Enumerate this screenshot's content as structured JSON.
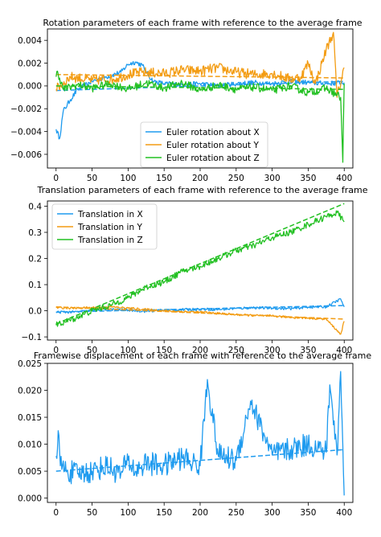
{
  "chart_data": [
    {
      "type": "line",
      "title": "Rotation parameters of each frame with reference to the average frame",
      "xlabel": "",
      "ylabel": "",
      "xlim": [
        -12,
        412
      ],
      "ylim": [
        -0.0072,
        0.005
      ],
      "xticks": [
        0,
        50,
        100,
        150,
        200,
        250,
        300,
        350,
        400
      ],
      "yticks": [
        -0.006,
        -0.004,
        -0.002,
        0.0,
        0.002,
        0.004
      ],
      "ytick_labels": [
        "−0.006",
        "−0.004",
        "−0.002",
        "0.000",
        "0.002",
        "0.004"
      ],
      "legend_position": "lower-center",
      "grid": false,
      "series": [
        {
          "name": "Euler rotation about X",
          "color": "#1f9bef",
          "x": [
            0,
            5,
            10,
            20,
            30,
            50,
            70,
            90,
            100,
            110,
            120,
            125,
            135,
            150,
            175,
            200,
            225,
            250,
            275,
            300,
            325,
            350,
            375,
            400
          ],
          "y": [
            -0.0038,
            -0.0046,
            -0.0022,
            -0.0012,
            -0.0003,
            0.0004,
            0.0008,
            0.0012,
            0.0019,
            0.0021,
            0.0018,
            0.0012,
            0.0004,
            0.0002,
            0.0001,
            0.0002,
            0.0,
            0.0002,
            0.0003,
            0.0002,
            0.0004,
            0.0003,
            0.0002,
            0.0003
          ],
          "trend": [
            -0.0004,
            0.0004
          ]
        },
        {
          "name": "Euler rotation about Y",
          "color": "#f39c12",
          "x": [
            0,
            20,
            50,
            80,
            100,
            120,
            150,
            175,
            200,
            225,
            250,
            275,
            300,
            325,
            340,
            350,
            360,
            375,
            385,
            390,
            400
          ],
          "y": [
            -0.0003,
            0.0008,
            0.0005,
            0.0006,
            0.001,
            0.0012,
            0.0011,
            0.0014,
            0.0013,
            0.0016,
            0.0012,
            0.001,
            0.0011,
            0.0006,
            0.0008,
            0.002,
            0.0002,
            0.0032,
            0.0047,
            -0.001,
            0.0016
          ],
          "trend": [
            0.001,
            0.0007
          ]
        },
        {
          "name": "Euler rotation about Z",
          "color": "#22c022",
          "x": [
            0,
            2,
            10,
            30,
            50,
            75,
            100,
            125,
            150,
            175,
            200,
            225,
            250,
            275,
            300,
            325,
            350,
            375,
            395,
            398,
            400
          ],
          "y": [
            0.0008,
            0.0013,
            -0.0003,
            0.0001,
            -0.0002,
            0.0002,
            -0.0003,
            0.0003,
            -0.0002,
            0.0003,
            -0.0004,
            0.0001,
            -0.0003,
            -0.0001,
            -0.0004,
            0.0,
            -0.0006,
            -0.0002,
            -0.001,
            -0.0067,
            0.0002
          ],
          "trend": [
            0.0,
            -0.0003
          ]
        }
      ]
    },
    {
      "type": "line",
      "title": "Translation parameters of each frame with reference to the average frame",
      "xlabel": "",
      "ylabel": "",
      "xlim": [
        -12,
        412
      ],
      "ylim": [
        -0.112,
        0.42
      ],
      "xticks": [
        0,
        50,
        100,
        150,
        200,
        250,
        300,
        350,
        400
      ],
      "yticks": [
        -0.1,
        0.0,
        0.1,
        0.2,
        0.3,
        0.4
      ],
      "ytick_labels": [
        "−0.1",
        "0.0",
        "0.1",
        "0.2",
        "0.3",
        "0.4"
      ],
      "legend_position": "upper-left",
      "grid": false,
      "series": [
        {
          "name": "Translation in X",
          "color": "#1f9bef",
          "x": [
            0,
            25,
            50,
            75,
            100,
            125,
            150,
            175,
            200,
            225,
            250,
            275,
            300,
            325,
            350,
            375,
            395,
            400
          ],
          "y": [
            -0.005,
            -0.005,
            0.0,
            0.005,
            0.003,
            -0.002,
            0.002,
            0.004,
            0.006,
            0.005,
            0.009,
            0.012,
            0.01,
            0.008,
            0.014,
            0.015,
            0.045,
            0.015
          ],
          "trend": [
            -0.005,
            0.02
          ]
        },
        {
          "name": "Translation in Y",
          "color": "#f39c12",
          "x": [
            0,
            25,
            50,
            75,
            100,
            125,
            150,
            175,
            200,
            225,
            250,
            275,
            300,
            325,
            350,
            375,
            395,
            400
          ],
          "y": [
            0.012,
            0.01,
            0.012,
            0.015,
            0.01,
            0.005,
            0.0,
            -0.003,
            -0.005,
            -0.01,
            -0.015,
            -0.018,
            -0.02,
            -0.025,
            -0.028,
            -0.032,
            -0.09,
            -0.04
          ],
          "trend": [
            0.015,
            -0.032
          ]
        },
        {
          "name": "Translation in Z",
          "color": "#22c022",
          "x": [
            0,
            25,
            50,
            75,
            100,
            125,
            150,
            175,
            200,
            225,
            250,
            275,
            300,
            325,
            350,
            375,
            390,
            400
          ],
          "y": [
            -0.055,
            -0.03,
            0.0,
            0.02,
            0.05,
            0.09,
            0.11,
            0.15,
            0.17,
            0.2,
            0.23,
            0.25,
            0.28,
            0.3,
            0.33,
            0.36,
            0.375,
            0.34
          ],
          "trend": [
            -0.05,
            0.41
          ]
        }
      ]
    },
    {
      "type": "line",
      "title": "Framewise displacement of each frame with reference to the average frame",
      "xlabel": "",
      "ylabel": "",
      "xlim": [
        -12,
        412
      ],
      "ylim": [
        -0.0008,
        0.025
      ],
      "xticks": [
        0,
        50,
        100,
        150,
        200,
        250,
        300,
        350,
        400
      ],
      "yticks": [
        0.0,
        0.005,
        0.01,
        0.015,
        0.02,
        0.025
      ],
      "ytick_labels": [
        "0.000",
        "0.005",
        "0.010",
        "0.015",
        "0.020",
        "0.025"
      ],
      "grid": false,
      "series": [
        {
          "color": "#1f9bef",
          "x": [
            0,
            3,
            6,
            15,
            30,
            50,
            70,
            90,
            100,
            110,
            125,
            150,
            175,
            200,
            210,
            225,
            250,
            270,
            300,
            325,
            350,
            375,
            380,
            390,
            395,
            400
          ],
          "y": [
            0.0078,
            0.0125,
            0.006,
            0.005,
            0.0045,
            0.005,
            0.006,
            0.0045,
            0.007,
            0.005,
            0.0065,
            0.006,
            0.0075,
            0.006,
            0.022,
            0.008,
            0.007,
            0.018,
            0.008,
            0.009,
            0.01,
            0.0085,
            0.021,
            0.008,
            0.0235,
            0.0005
          ],
          "trend": [
            0.005,
            0.009
          ]
        }
      ]
    }
  ]
}
